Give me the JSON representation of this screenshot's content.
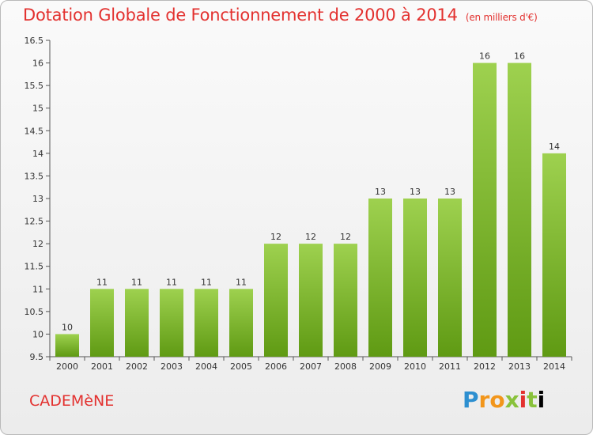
{
  "header": {
    "title": "Dotation Globale de Fonctionnement de 2000 à 2014",
    "subtitle": "(en milliers d'€)"
  },
  "footer": {
    "commune": "CADEMèNE",
    "brand_letters": [
      "P",
      "r",
      "o",
      "x",
      "i",
      "t",
      "i"
    ]
  },
  "colors": {
    "title": "#e3312f",
    "bar_top": "#9ed14f",
    "bar_bottom": "#5f9a13"
  },
  "chart_data": {
    "type": "bar",
    "categories": [
      "2000",
      "2001",
      "2002",
      "2003",
      "2004",
      "2005",
      "2006",
      "2007",
      "2008",
      "2009",
      "2010",
      "2011",
      "2012",
      "2013",
      "2014"
    ],
    "values": [
      10,
      11,
      11,
      11,
      11,
      11,
      12,
      12,
      12,
      13,
      13,
      13,
      16,
      16,
      14
    ],
    "value_labels": [
      "10",
      "11",
      "11",
      "11",
      "11",
      "11",
      "12",
      "12",
      "12",
      "13",
      "13",
      "13",
      "16",
      "16",
      "14"
    ],
    "title": "Dotation Globale de Fonctionnement de 2000 à 2014",
    "xlabel": "",
    "ylabel": "",
    "ylim": [
      9.5,
      16.5
    ],
    "yticks": [
      9.5,
      10,
      10.5,
      11,
      11.5,
      12,
      12.5,
      13,
      13.5,
      14,
      14.5,
      15,
      15.5,
      16,
      16.5
    ],
    "ytick_labels": [
      "9.5",
      "10",
      "10.5",
      "11",
      "11.5",
      "12",
      "12.5",
      "13",
      "13.5",
      "14",
      "14.5",
      "15",
      "15.5",
      "16",
      "16.5"
    ],
    "grid": false,
    "legend": "none"
  }
}
